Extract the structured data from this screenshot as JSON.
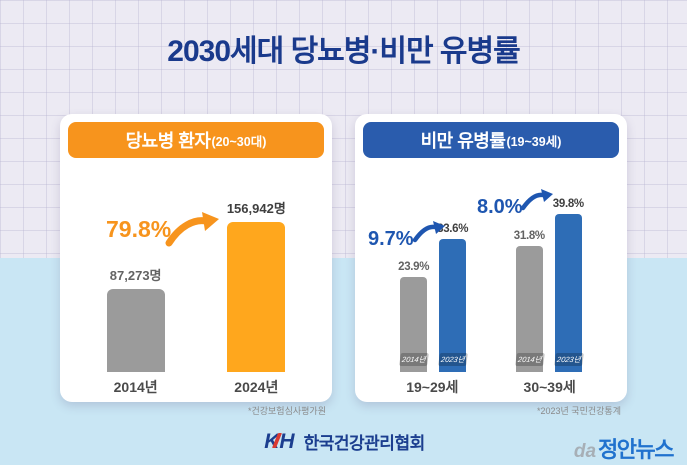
{
  "title": "2030세대 당뇨병·비만 유병률",
  "chart_data": [
    {
      "type": "bar",
      "title": "당뇨병 환자(20~30대)",
      "header_main": "당뇨병 환자",
      "header_sub": "(20~30대)",
      "categories": [
        "2014년",
        "2024년"
      ],
      "values": [
        87273,
        156942
      ],
      "value_labels": [
        "87,273명",
        "156,942명"
      ],
      "increase_label": "79.8%",
      "unit": "명",
      "ylim": [
        0,
        160000
      ],
      "grid": false,
      "legend": "none",
      "bar_colors": [
        "#9b9b9b",
        "#ffa71d"
      ],
      "source": "*건강보험심사평가원"
    },
    {
      "type": "bar",
      "title": "비만 유병률(19~39세)",
      "header_main": "비만 유병률",
      "header_sub": "(19~39세)",
      "categories": [
        "19~29세",
        "30~39세"
      ],
      "series": [
        {
          "name": "2014년",
          "values": [
            23.9,
            31.8
          ],
          "color": "#9b9b9b"
        },
        {
          "name": "2023년",
          "values": [
            33.6,
            39.8
          ],
          "color": "#2e6db6"
        }
      ],
      "value_labels": [
        [
          "23.9%",
          "33.6%"
        ],
        [
          "31.8%",
          "39.8%"
        ]
      ],
      "increase_labels": [
        "9.7%",
        "8.0%"
      ],
      "unit": "%",
      "ylim": [
        0,
        42
      ],
      "grid": false,
      "legend": "in-bar labels",
      "source": "*2023년 국민건강통계"
    }
  ],
  "footer": {
    "logo_mark": "KH",
    "logo_text": "한국건강관리협회",
    "watermark_mark": "da",
    "watermark_text": "정안뉴스"
  },
  "colors": {
    "title": "#1a3a8c",
    "orange_header": "#f7941d",
    "orange_bar": "#ffa71d",
    "blue_header": "#2a5cad",
    "blue_bar": "#2e6db6",
    "gray_bar": "#9b9b9b",
    "increase_orange": "#f7941d",
    "increase_blue": "#1e56b0",
    "bg_top": "#eceaf3",
    "bg_bottom": "#c9e6f4"
  }
}
